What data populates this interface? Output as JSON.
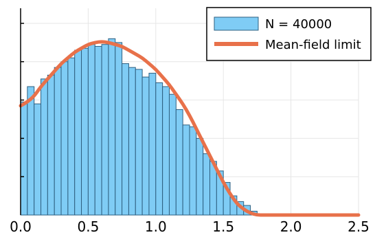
{
  "chart_data": {
    "type": "bar",
    "title": "",
    "xlabel": "",
    "ylabel": "",
    "xlim": [
      0.0,
      2.5
    ],
    "ylim": [
      0,
      1.0
    ],
    "x_ticks": [
      "0.0",
      "0.5",
      "1.0",
      "1.5",
      "2.0",
      "2.5"
    ],
    "grid": true,
    "legend_position": "top-right",
    "bin_width": 0.05,
    "histogram": {
      "name": "N = 40000",
      "color": "#7fccf5",
      "edge_color": "#2e5f80",
      "bin_start": [
        0.0,
        0.05,
        0.1,
        0.15,
        0.2,
        0.25,
        0.3,
        0.35,
        0.4,
        0.45,
        0.5,
        0.55,
        0.6,
        0.65,
        0.7,
        0.75,
        0.8,
        0.85,
        0.9,
        0.95,
        1.0,
        1.05,
        1.1,
        1.15,
        1.2,
        1.25,
        1.3,
        1.35,
        1.4,
        1.45,
        1.5,
        1.55,
        1.6,
        1.65,
        1.7
      ],
      "values": [
        0.59,
        0.67,
        0.58,
        0.71,
        0.73,
        0.77,
        0.8,
        0.82,
        0.86,
        0.87,
        0.89,
        0.88,
        0.89,
        0.92,
        0.9,
        0.79,
        0.77,
        0.76,
        0.72,
        0.74,
        0.69,
        0.67,
        0.63,
        0.55,
        0.47,
        0.46,
        0.4,
        0.32,
        0.28,
        0.23,
        0.17,
        0.1,
        0.07,
        0.05,
        0.02
      ]
    },
    "series": [
      {
        "name": "Mean-field limit",
        "color": "#e8714a",
        "x": [
          0.0,
          0.05,
          0.1,
          0.15,
          0.2,
          0.25,
          0.3,
          0.35,
          0.4,
          0.45,
          0.5,
          0.55,
          0.6,
          0.65,
          0.7,
          0.75,
          0.8,
          0.85,
          0.9,
          0.95,
          1.0,
          1.05,
          1.1,
          1.15,
          1.2,
          1.25,
          1.3,
          1.35,
          1.4,
          1.45,
          1.5,
          1.55,
          1.6,
          1.65,
          1.7,
          1.75,
          1.8,
          1.9,
          2.0,
          2.25,
          2.5
        ],
        "y": [
          0.57,
          0.59,
          0.62,
          0.67,
          0.71,
          0.75,
          0.79,
          0.82,
          0.85,
          0.87,
          0.89,
          0.9,
          0.905,
          0.9,
          0.89,
          0.88,
          0.86,
          0.84,
          0.82,
          0.79,
          0.76,
          0.72,
          0.68,
          0.63,
          0.58,
          0.52,
          0.45,
          0.38,
          0.31,
          0.24,
          0.17,
          0.11,
          0.06,
          0.03,
          0.01,
          0.0,
          0.0,
          0.0,
          0.0,
          0.0,
          0.0
        ]
      }
    ]
  }
}
